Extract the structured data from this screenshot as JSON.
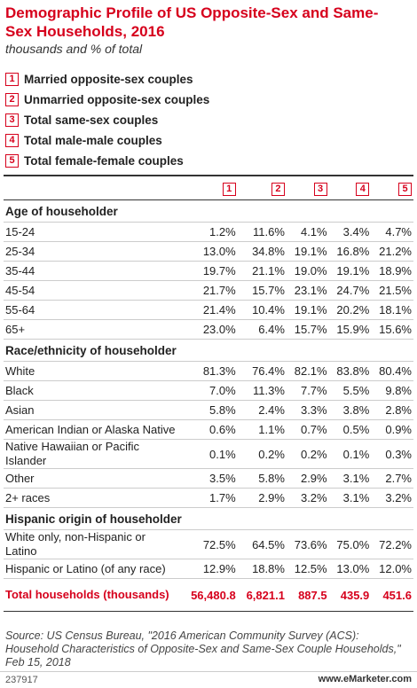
{
  "header": {
    "title": "Demographic Profile of US Opposite-Sex and Same-Sex Households, 2016",
    "subtitle": "thousands and % of total"
  },
  "legend": [
    {
      "key": "1",
      "label": "Married opposite-sex couples"
    },
    {
      "key": "2",
      "label": "Unmarried opposite-sex couples"
    },
    {
      "key": "3",
      "label": "Total same-sex couples"
    },
    {
      "key": "4",
      "label": "Total male-male couples"
    },
    {
      "key": "5",
      "label": "Total female-female couples"
    }
  ],
  "table": {
    "columns": [
      "1",
      "2",
      "3",
      "4",
      "5"
    ],
    "sections": [
      {
        "title": "Age of householder",
        "rows": [
          {
            "label": "15-24",
            "cells": [
              "1.2%",
              "11.6%",
              "4.1%",
              "3.4%",
              "4.7%"
            ]
          },
          {
            "label": "25-34",
            "cells": [
              "13.0%",
              "34.8%",
              "19.1%",
              "16.8%",
              "21.2%"
            ]
          },
          {
            "label": "35-44",
            "cells": [
              "19.7%",
              "21.1%",
              "19.0%",
              "19.1%",
              "18.9%"
            ]
          },
          {
            "label": "45-54",
            "cells": [
              "21.7%",
              "15.7%",
              "23.1%",
              "24.7%",
              "21.5%"
            ]
          },
          {
            "label": "55-64",
            "cells": [
              "21.4%",
              "10.4%",
              "19.1%",
              "20.2%",
              "18.1%"
            ]
          },
          {
            "label": "65+",
            "cells": [
              "23.0%",
              "6.4%",
              "15.7%",
              "15.9%",
              "15.6%"
            ]
          }
        ]
      },
      {
        "title": "Race/ethnicity of householder",
        "rows": [
          {
            "label": "White",
            "cells": [
              "81.3%",
              "76.4%",
              "82.1%",
              "83.8%",
              "80.4%"
            ]
          },
          {
            "label": "Black",
            "cells": [
              "7.0%",
              "11.3%",
              "7.7%",
              "5.5%",
              "9.8%"
            ]
          },
          {
            "label": "Asian",
            "cells": [
              "5.8%",
              "2.4%",
              "3.3%",
              "3.8%",
              "2.8%"
            ]
          },
          {
            "label": "American Indian or Alaska Native",
            "cells": [
              "0.6%",
              "1.1%",
              "0.7%",
              "0.5%",
              "0.9%"
            ]
          },
          {
            "label": "Native Hawaiian or Pacific Islander",
            "cells": [
              "0.1%",
              "0.2%",
              "0.2%",
              "0.1%",
              "0.3%"
            ]
          },
          {
            "label": "Other",
            "cells": [
              "3.5%",
              "5.8%",
              "2.9%",
              "3.1%",
              "2.7%"
            ]
          },
          {
            "label": "2+ races",
            "cells": [
              "1.7%",
              "2.9%",
              "3.2%",
              "3.1%",
              "3.2%"
            ]
          }
        ]
      },
      {
        "title": "Hispanic origin of householder",
        "rows": [
          {
            "label": "White only, non-Hispanic or Latino",
            "cells": [
              "72.5%",
              "64.5%",
              "73.6%",
              "75.0%",
              "72.2%"
            ]
          },
          {
            "label": "Hispanic or Latino (of any race)",
            "cells": [
              "12.9%",
              "18.8%",
              "12.5%",
              "13.0%",
              "12.0%"
            ]
          }
        ]
      }
    ],
    "total": {
      "label": "Total households (thousands)",
      "cells": [
        "56,480.8",
        "6,821.1",
        "887.5",
        "435.9",
        "451.6"
      ]
    }
  },
  "footer": {
    "source": "Source: US Census Bureau, \"2016 American Community Survey (ACS): Household Characteristics of Opposite-Sex and Same-Sex Couple Households,\" Feb 15, 2018",
    "id": "237917",
    "brand": "www.eMarketer.com"
  }
}
